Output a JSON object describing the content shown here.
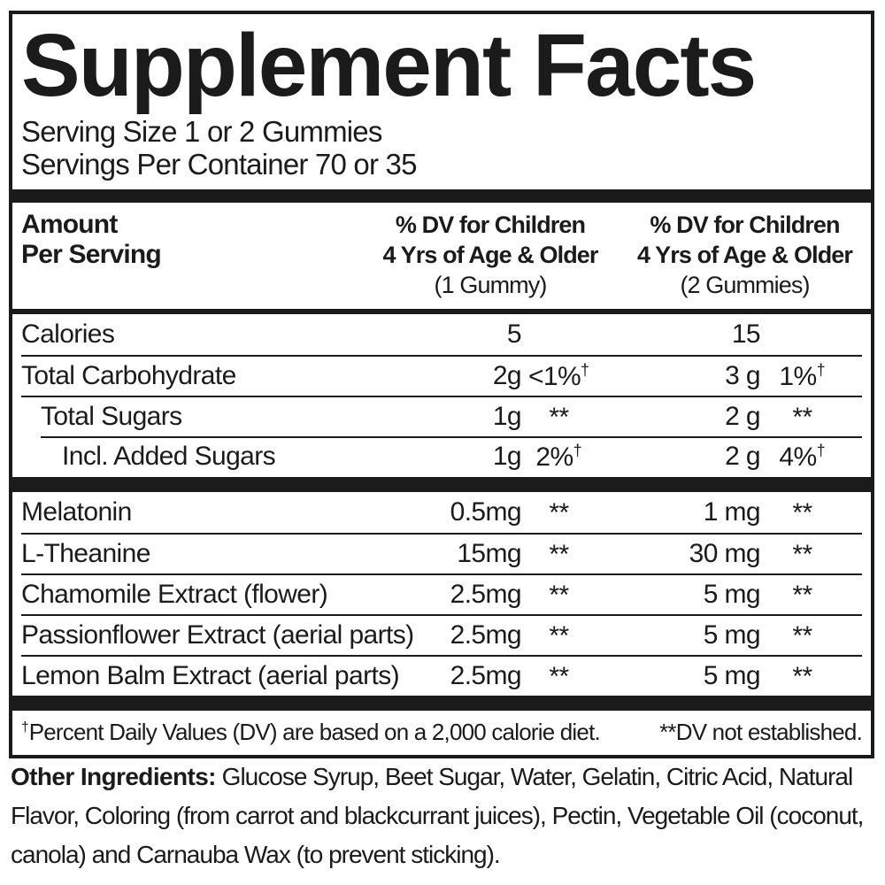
{
  "title": "Supplement Facts",
  "serving": {
    "size_line": "Serving Size 1 or 2 Gummies",
    "per_container_line": "Servings Per Container 70 or 35"
  },
  "header": {
    "amount_line1": "Amount",
    "amount_line2": "Per Serving",
    "col1": {
      "line1": "% DV for Children",
      "line2": "4 Yrs of Age & Older",
      "line3": "(1 Gummy)"
    },
    "col2": {
      "line1": "% DV for Children",
      "line2": "4 Yrs of Age & Older",
      "line3": "(2 Gummies)"
    }
  },
  "table": {
    "rows_top": [
      {
        "name": "Calories",
        "indent": 0,
        "sep": "none",
        "amt1": "5",
        "dv1": "",
        "dv1_sup": "",
        "amt2": "15",
        "dv2": "",
        "dv2_sup": ""
      },
      {
        "name": "Total Carbohydrate",
        "indent": 0,
        "sep": "full",
        "amt1": "2g",
        "dv1": "<1%",
        "dv1_sup": "†",
        "amt2": "3 g",
        "dv2": "1%",
        "dv2_sup": "†"
      },
      {
        "name": "Total Sugars",
        "indent": 1,
        "sep": "full",
        "amt1": "1g",
        "dv1": "**",
        "dv1_sup": "",
        "amt2": "2 g",
        "dv2": "**",
        "dv2_sup": ""
      },
      {
        "name": "Incl. Added Sugars",
        "indent": 2,
        "sep": "indent",
        "amt1": "1g",
        "dv1": "2%",
        "dv1_sup": "†",
        "amt2": "2 g",
        "dv2": "4%",
        "dv2_sup": "†"
      }
    ],
    "rows_bottom": [
      {
        "name": "Melatonin",
        "indent": 0,
        "sep": "none",
        "amt1": "0.5mg",
        "dv1": "**",
        "dv1_sup": "",
        "amt2": "1 mg",
        "dv2": "**",
        "dv2_sup": ""
      },
      {
        "name": "L-Theanine",
        "indent": 0,
        "sep": "full",
        "amt1": "15mg",
        "dv1": "**",
        "dv1_sup": "",
        "amt2": "30 mg",
        "dv2": "**",
        "dv2_sup": ""
      },
      {
        "name": "Chamomile Extract (flower)",
        "indent": 0,
        "sep": "full",
        "amt1": "2.5mg",
        "dv1": "**",
        "dv1_sup": "",
        "amt2": "5 mg",
        "dv2": "**",
        "dv2_sup": ""
      },
      {
        "name": "Passionflower Extract (aerial parts)",
        "indent": 0,
        "sep": "full",
        "amt1": "2.5mg",
        "dv1": "**",
        "dv1_sup": "",
        "amt2": "5 mg",
        "dv2": "**",
        "dv2_sup": ""
      },
      {
        "name": "Lemon Balm Extract (aerial parts)",
        "indent": 0,
        "sep": "full",
        "amt1": "2.5mg",
        "dv1": "**",
        "dv1_sup": "",
        "amt2": "5 mg",
        "dv2": "**",
        "dv2_sup": ""
      }
    ]
  },
  "footnote": {
    "dagger": "†",
    "left": "Percent Daily Values (DV) are based on a 2,000 calorie diet.",
    "right": "**DV not established."
  },
  "other_ingredients": {
    "label": "Other Ingredients:",
    "text": " Glucose Syrup, Beet Sugar, Water, Gelatin, Citric Acid, Natural Flavor, Coloring (from carrot and blackcurrant juices), Pectin, Vegetable Oil (coconut, canola) and Carnauba Wax (to prevent sticking)."
  },
  "colors": {
    "ink": "#1b1b1b",
    "background": "#ffffff"
  }
}
